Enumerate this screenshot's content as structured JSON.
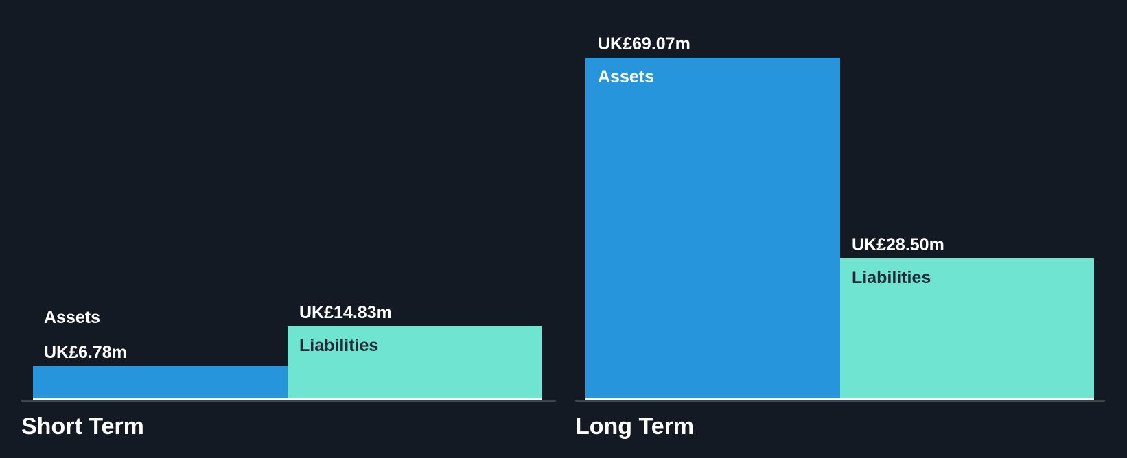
{
  "chart_data": {
    "type": "bar",
    "description": "Short term vs long term assets and liabilities",
    "unit": "UK£ millions",
    "groups": [
      {
        "title": "Short Term",
        "bars": [
          {
            "name": "Assets",
            "value": 6.78,
            "value_label": "UK£6.78m",
            "color": "#2795DC"
          },
          {
            "name": "Liabilities",
            "value": 14.83,
            "value_label": "UK£14.83m",
            "color": "#6FE4D0"
          }
        ]
      },
      {
        "title": "Long Term",
        "bars": [
          {
            "name": "Assets",
            "value": 69.07,
            "value_label": "UK£69.07m",
            "color": "#2795DC"
          },
          {
            "name": "Liabilities",
            "value": 28.5,
            "value_label": "UK£28.50m",
            "color": "#6FE4D0"
          }
        ]
      }
    ],
    "ylim": [
      0,
      69.07
    ],
    "grid": false,
    "legend": "none",
    "colors": {
      "background": "#141A23",
      "assets_bar": "#2795DC",
      "liabilities_bar": "#6FE4D0",
      "axis_line": "#3E4550",
      "bar_base_line": "#FFFFFF",
      "text_on_dark": "#FFFFFF",
      "text_on_teal": "#1E2A36"
    }
  }
}
